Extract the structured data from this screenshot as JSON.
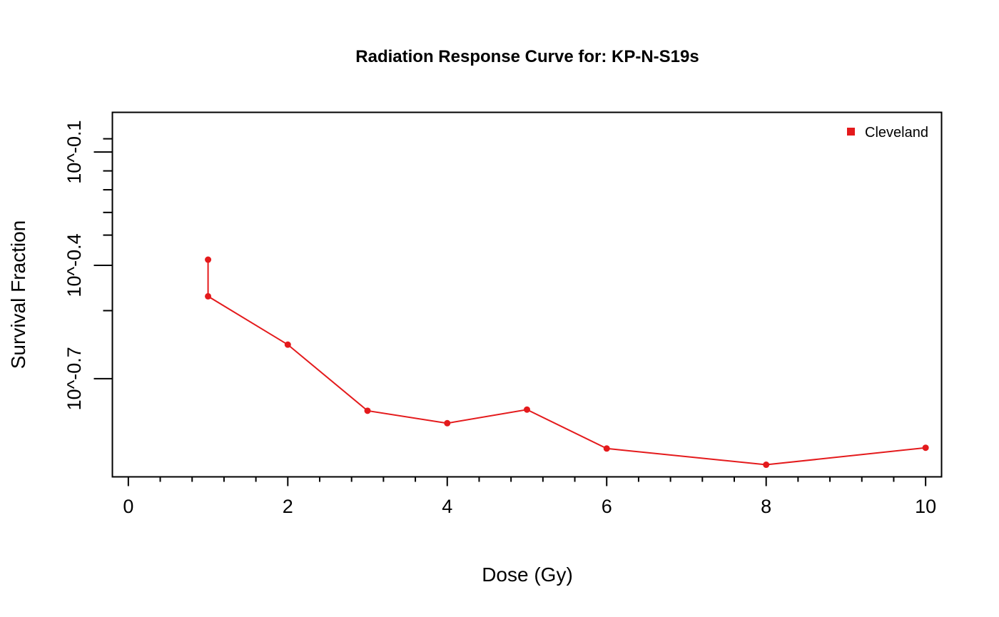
{
  "chart_data": {
    "type": "line",
    "title": "Radiation Response Curve for: KP-N-S19s",
    "xlabel": "Dose (Gy)",
    "ylabel": "Survival Fraction",
    "xlim": [
      -0.2,
      10.2
    ],
    "xticks": [
      0,
      2,
      4,
      6,
      8,
      10
    ],
    "xtick_labels": [
      "0",
      "2",
      "4",
      "6",
      "8",
      "10"
    ],
    "y_scale": "log10",
    "ylim_log10": [
      -0.96,
      0.005
    ],
    "yticks_log10": [
      -0.1,
      -0.4,
      -0.7
    ],
    "ytick_labels": [
      "10^-0.1",
      "10^-0.4",
      "10^-0.7"
    ],
    "y_minor_ticks_log10": [
      -0.065,
      -0.15,
      -0.2,
      -0.26,
      -0.32,
      -0.52
    ],
    "grid": false,
    "legend_position": "top-right",
    "colors": {
      "series": "#e41a1c",
      "axis": "#000000"
    },
    "series": [
      {
        "name": "Cleveland",
        "x": [
          1,
          1,
          2,
          3,
          4,
          5,
          6,
          8,
          10
        ],
        "y_log10": [
          -0.385,
          -0.482,
          -0.61,
          -0.785,
          -0.818,
          -0.782,
          -0.885,
          -0.928,
          -0.883
        ]
      }
    ]
  }
}
